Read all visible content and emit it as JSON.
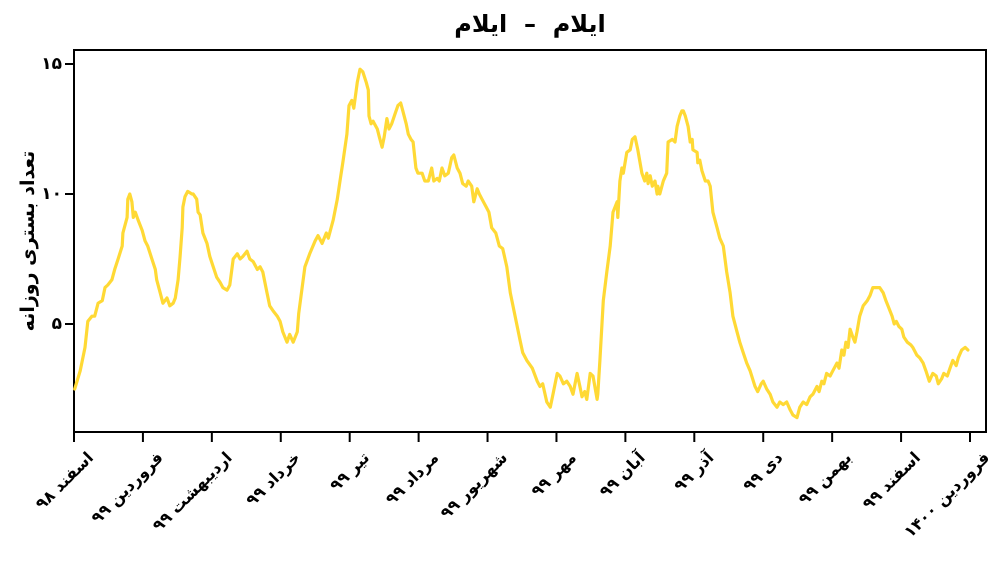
{
  "chart_data": {
    "type": "line",
    "title": "ایلام  –  ایلام",
    "ylabel": "تعداد بستری روزانه",
    "xlabel": "",
    "grid": false,
    "legend": "none",
    "background": "#ffffff",
    "axis_color": "#000000",
    "x_unit": "months (Iranian calendar, Esfand 1398 to Farvardin 1400)",
    "x_tick_labels": [
      "اسفند ۹۸",
      "فروردین ۹۹",
      "اردیبهشت ۹۹",
      "خرداد ۹۹",
      "تیر ۹۹",
      "مرداد ۹۹",
      "شهریور ۹۹",
      "مهر ۹۹",
      "آبان ۹۹",
      "آذر ۹۹",
      "دی ۹۹",
      "بهمن ۹۹",
      "اسفند ۹۹",
      "فروردین ۱۴۰۰"
    ],
    "y_ticks": [
      {
        "value": 5,
        "label": "۵"
      },
      {
        "value": 10,
        "label": "۱۰"
      },
      {
        "value": 15,
        "label": "۱۵"
      }
    ],
    "ylim": [
      0.85,
      15.55
    ],
    "xlim_months": [
      0,
      13.23
    ],
    "series": [
      {
        "name": "ایلام",
        "color": "#FFD935",
        "points": [
          [
            0.01,
            2.5
          ],
          [
            0.09,
            3.2
          ],
          [
            0.16,
            4.1
          ],
          [
            0.2,
            5.1
          ],
          [
            0.26,
            5.3
          ],
          [
            0.3,
            5.3
          ],
          [
            0.35,
            5.8
          ],
          [
            0.41,
            5.9
          ],
          [
            0.45,
            6.4
          ],
          [
            0.49,
            6.5
          ],
          [
            0.55,
            6.7
          ],
          [
            0.59,
            7.1
          ],
          [
            0.64,
            7.5
          ],
          [
            0.7,
            8.0
          ],
          [
            0.71,
            8.5
          ],
          [
            0.77,
            9.1
          ],
          [
            0.78,
            9.8
          ],
          [
            0.81,
            10.0
          ],
          [
            0.84,
            9.7
          ],
          [
            0.86,
            9.1
          ],
          [
            0.89,
            9.3
          ],
          [
            0.93,
            9.0
          ],
          [
            0.99,
            8.6
          ],
          [
            1.03,
            8.2
          ],
          [
            1.07,
            8.0
          ],
          [
            1.13,
            7.5
          ],
          [
            1.18,
            7.1
          ],
          [
            1.2,
            6.7
          ],
          [
            1.25,
            6.2
          ],
          [
            1.29,
            5.8
          ],
          [
            1.35,
            6.0
          ],
          [
            1.39,
            5.7
          ],
          [
            1.44,
            5.8
          ],
          [
            1.47,
            6.0
          ],
          [
            1.51,
            6.7
          ],
          [
            1.54,
            7.6
          ],
          [
            1.57,
            8.7
          ],
          [
            1.58,
            9.5
          ],
          [
            1.61,
            9.9
          ],
          [
            1.65,
            10.1
          ],
          [
            1.71,
            10.0
          ],
          [
            1.73,
            10.0
          ],
          [
            1.78,
            9.8
          ],
          [
            1.8,
            9.3
          ],
          [
            1.83,
            9.2
          ],
          [
            1.87,
            8.5
          ],
          [
            1.93,
            8.1
          ],
          [
            1.97,
            7.6
          ],
          [
            2.02,
            7.2
          ],
          [
            2.07,
            6.8
          ],
          [
            2.12,
            6.6
          ],
          [
            2.16,
            6.4
          ],
          [
            2.22,
            6.3
          ],
          [
            2.26,
            6.5
          ],
          [
            2.31,
            7.5
          ],
          [
            2.37,
            7.7
          ],
          [
            2.41,
            7.5
          ],
          [
            2.45,
            7.6
          ],
          [
            2.51,
            7.8
          ],
          [
            2.55,
            7.5
          ],
          [
            2.6,
            7.4
          ],
          [
            2.66,
            7.1
          ],
          [
            2.7,
            7.2
          ],
          [
            2.74,
            7.0
          ],
          [
            2.8,
            6.2
          ],
          [
            2.84,
            5.7
          ],
          [
            2.89,
            5.5
          ],
          [
            2.95,
            5.3
          ],
          [
            2.99,
            5.1
          ],
          [
            3.03,
            4.7
          ],
          [
            3.09,
            4.3
          ],
          [
            3.13,
            4.6
          ],
          [
            3.18,
            4.3
          ],
          [
            3.24,
            4.7
          ],
          [
            3.26,
            5.4
          ],
          [
            3.35,
            7.2
          ],
          [
            3.42,
            7.7
          ],
          [
            3.5,
            8.2
          ],
          [
            3.54,
            8.4
          ],
          [
            3.6,
            8.1
          ],
          [
            3.66,
            8.5
          ],
          [
            3.69,
            8.3
          ],
          [
            3.76,
            9.0
          ],
          [
            3.82,
            9.8
          ],
          [
            3.86,
            10.5
          ],
          [
            3.9,
            11.2
          ],
          [
            3.96,
            12.3
          ],
          [
            3.99,
            13.4
          ],
          [
            4.03,
            13.6
          ],
          [
            4.06,
            13.3
          ],
          [
            4.11,
            14.3
          ],
          [
            4.15,
            14.8
          ],
          [
            4.19,
            14.7
          ],
          [
            4.24,
            14.3
          ],
          [
            4.27,
            14.0
          ],
          [
            4.28,
            13.0
          ],
          [
            4.31,
            12.7
          ],
          [
            4.34,
            12.8
          ],
          [
            4.4,
            12.5
          ],
          [
            4.43,
            12.2
          ],
          [
            4.47,
            11.8
          ],
          [
            4.5,
            12.2
          ],
          [
            4.54,
            12.9
          ],
          [
            4.57,
            12.5
          ],
          [
            4.61,
            12.7
          ],
          [
            4.66,
            13.1
          ],
          [
            4.7,
            13.4
          ],
          [
            4.74,
            13.5
          ],
          [
            4.77,
            13.2
          ],
          [
            4.82,
            12.7
          ],
          [
            4.85,
            12.3
          ],
          [
            4.89,
            12.1
          ],
          [
            4.92,
            12.0
          ],
          [
            4.96,
            11.0
          ],
          [
            4.99,
            10.8
          ],
          [
            5.05,
            10.8
          ],
          [
            5.09,
            10.5
          ],
          [
            5.14,
            10.5
          ],
          [
            5.19,
            11.0
          ],
          [
            5.22,
            10.5
          ],
          [
            5.27,
            10.6
          ],
          [
            5.3,
            10.5
          ],
          [
            5.34,
            11.0
          ],
          [
            5.38,
            10.7
          ],
          [
            5.43,
            10.8
          ],
          [
            5.48,
            11.4
          ],
          [
            5.51,
            11.5
          ],
          [
            5.56,
            11.0
          ],
          [
            5.6,
            10.8
          ],
          [
            5.64,
            10.4
          ],
          [
            5.69,
            10.3
          ],
          [
            5.72,
            10.5
          ],
          [
            5.77,
            10.3
          ],
          [
            5.8,
            9.7
          ],
          [
            5.85,
            10.2
          ],
          [
            5.88,
            10.0
          ],
          [
            5.92,
            9.8
          ],
          [
            5.98,
            9.5
          ],
          [
            6.02,
            9.3
          ],
          [
            6.06,
            8.7
          ],
          [
            6.12,
            8.5
          ],
          [
            6.17,
            8.0
          ],
          [
            6.22,
            7.9
          ],
          [
            6.28,
            7.2
          ],
          [
            6.33,
            6.2
          ],
          [
            6.4,
            5.3
          ],
          [
            6.47,
            4.4
          ],
          [
            6.51,
            3.9
          ],
          [
            6.57,
            3.6
          ],
          [
            6.65,
            3.3
          ],
          [
            6.72,
            2.8
          ],
          [
            6.76,
            2.6
          ],
          [
            6.8,
            2.7
          ],
          [
            6.86,
            2.0
          ],
          [
            6.91,
            1.8
          ],
          [
            6.95,
            2.3
          ],
          [
            7.01,
            3.1
          ],
          [
            7.05,
            3.0
          ],
          [
            7.1,
            2.7
          ],
          [
            7.15,
            2.8
          ],
          [
            7.2,
            2.6
          ],
          [
            7.24,
            2.3
          ],
          [
            7.3,
            3.1
          ],
          [
            7.34,
            2.6
          ],
          [
            7.37,
            2.2
          ],
          [
            7.41,
            2.4
          ],
          [
            7.44,
            2.1
          ],
          [
            7.49,
            3.1
          ],
          [
            7.53,
            3.0
          ],
          [
            7.59,
            2.1
          ],
          [
            7.6,
            2.3
          ],
          [
            7.63,
            3.6
          ],
          [
            7.68,
            5.9
          ],
          [
            7.73,
            7.0
          ],
          [
            7.78,
            8.0
          ],
          [
            7.82,
            9.3
          ],
          [
            7.88,
            9.7
          ],
          [
            7.89,
            9.1
          ],
          [
            7.92,
            10.5
          ],
          [
            7.95,
            11.0
          ],
          [
            7.97,
            10.8
          ],
          [
            8.02,
            11.6
          ],
          [
            8.07,
            11.7
          ],
          [
            8.1,
            12.1
          ],
          [
            8.14,
            12.2
          ],
          [
            8.18,
            11.7
          ],
          [
            8.24,
            10.8
          ],
          [
            8.28,
            10.5
          ],
          [
            8.31,
            10.8
          ],
          [
            8.33,
            10.4
          ],
          [
            8.36,
            10.7
          ],
          [
            8.39,
            10.3
          ],
          [
            8.43,
            10.5
          ],
          [
            8.46,
            10.0
          ],
          [
            8.47,
            10.3
          ],
          [
            8.5,
            10.0
          ],
          [
            8.55,
            10.5
          ],
          [
            8.6,
            10.8
          ],
          [
            8.62,
            12.0
          ],
          [
            8.68,
            12.1
          ],
          [
            8.72,
            12.0
          ],
          [
            8.75,
            12.6
          ],
          [
            8.79,
            13.0
          ],
          [
            8.82,
            13.2
          ],
          [
            8.84,
            13.2
          ],
          [
            8.87,
            13.0
          ],
          [
            8.91,
            12.6
          ],
          [
            8.94,
            12.0
          ],
          [
            8.97,
            12.1
          ],
          [
            8.98,
            11.7
          ],
          [
            9.04,
            11.6
          ],
          [
            9.05,
            11.2
          ],
          [
            9.08,
            11.3
          ],
          [
            9.11,
            10.9
          ],
          [
            9.16,
            10.5
          ],
          [
            9.2,
            10.5
          ],
          [
            9.23,
            10.3
          ],
          [
            9.27,
            9.3
          ],
          [
            9.33,
            8.7
          ],
          [
            9.37,
            8.3
          ],
          [
            9.42,
            8.0
          ],
          [
            9.47,
            7.0
          ],
          [
            9.52,
            6.2
          ],
          [
            9.56,
            5.3
          ],
          [
            9.62,
            4.7
          ],
          [
            9.66,
            4.3
          ],
          [
            9.71,
            3.9
          ],
          [
            9.76,
            3.5
          ],
          [
            9.81,
            3.2
          ],
          [
            9.88,
            2.6
          ],
          [
            9.92,
            2.4
          ],
          [
            9.97,
            2.7
          ],
          [
            10.0,
            2.8
          ],
          [
            10.05,
            2.5
          ],
          [
            10.1,
            2.3
          ],
          [
            10.14,
            2.0
          ],
          [
            10.2,
            1.8
          ],
          [
            10.24,
            2.0
          ],
          [
            10.29,
            1.9
          ],
          [
            10.34,
            2.0
          ],
          [
            10.39,
            1.7
          ],
          [
            10.43,
            1.5
          ],
          [
            10.49,
            1.4
          ],
          [
            10.53,
            1.8
          ],
          [
            10.58,
            2.0
          ],
          [
            10.63,
            1.9
          ],
          [
            10.68,
            2.2
          ],
          [
            10.72,
            2.3
          ],
          [
            10.78,
            2.6
          ],
          [
            10.81,
            2.4
          ],
          [
            10.85,
            2.8
          ],
          [
            10.88,
            2.7
          ],
          [
            10.92,
            3.1
          ],
          [
            10.97,
            3.0
          ],
          [
            11.01,
            3.2
          ],
          [
            11.07,
            3.5
          ],
          [
            11.1,
            3.3
          ],
          [
            11.14,
            4.0
          ],
          [
            11.17,
            3.8
          ],
          [
            11.2,
            4.3
          ],
          [
            11.23,
            4.1
          ],
          [
            11.26,
            4.8
          ],
          [
            11.3,
            4.5
          ],
          [
            11.33,
            4.3
          ],
          [
            11.36,
            4.7
          ],
          [
            11.4,
            5.3
          ],
          [
            11.45,
            5.7
          ],
          [
            11.51,
            5.9
          ],
          [
            11.55,
            6.1
          ],
          [
            11.59,
            6.4
          ],
          [
            11.65,
            6.4
          ],
          [
            11.69,
            6.4
          ],
          [
            11.74,
            6.2
          ],
          [
            11.78,
            5.9
          ],
          [
            11.81,
            5.7
          ],
          [
            11.87,
            5.3
          ],
          [
            11.9,
            5.0
          ],
          [
            11.93,
            5.1
          ],
          [
            11.97,
            4.9
          ],
          [
            12.01,
            4.8
          ],
          [
            12.04,
            4.5
          ],
          [
            12.09,
            4.3
          ],
          [
            12.14,
            4.2
          ],
          [
            12.17,
            4.1
          ],
          [
            12.23,
            3.8
          ],
          [
            12.27,
            3.7
          ],
          [
            12.32,
            3.5
          ],
          [
            12.36,
            3.2
          ],
          [
            12.41,
            2.8
          ],
          [
            12.46,
            3.1
          ],
          [
            12.51,
            3.0
          ],
          [
            12.54,
            2.7
          ],
          [
            12.59,
            2.9
          ],
          [
            12.62,
            3.1
          ],
          [
            12.67,
            3.0
          ],
          [
            12.71,
            3.3
          ],
          [
            12.75,
            3.6
          ],
          [
            12.8,
            3.4
          ],
          [
            12.83,
            3.7
          ],
          [
            12.88,
            4.0
          ],
          [
            12.93,
            4.1
          ],
          [
            12.97,
            4.0
          ]
        ]
      }
    ]
  }
}
